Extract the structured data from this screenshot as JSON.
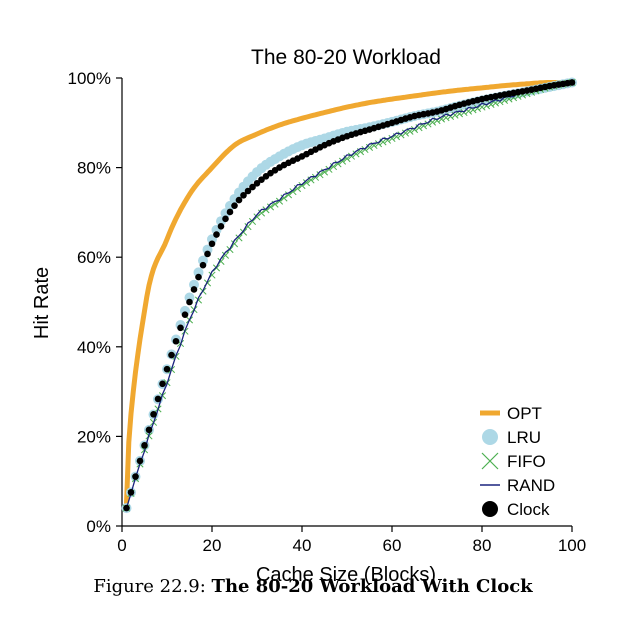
{
  "chart_data": {
    "type": "line",
    "title": "The 80-20 Workload",
    "xlabel": "Cache Size (Blocks)",
    "ylabel": "Hit Rate",
    "xlim": [
      0,
      100
    ],
    "ylim": [
      0,
      100
    ],
    "x_ticks": [
      0,
      20,
      40,
      60,
      80,
      100
    ],
    "x_tick_labels": [
      "0",
      "20",
      "40",
      "60",
      "80",
      "100"
    ],
    "y_ticks": [
      0,
      20,
      40,
      60,
      80,
      100
    ],
    "y_tick_labels": [
      "0%",
      "20%",
      "40%",
      "60%",
      "80%",
      "100%"
    ],
    "grid": false,
    "legend_position": "bottom-right",
    "x": [
      1,
      5,
      10,
      15,
      20,
      25,
      30,
      35,
      40,
      45,
      50,
      55,
      60,
      65,
      70,
      75,
      80,
      85,
      90,
      95,
      100
    ],
    "series": [
      {
        "name": "OPT",
        "style": "line",
        "color": "#f0a830",
        "values": [
          5,
          48,
          64,
          74,
          80,
          85,
          87.5,
          89.5,
          91,
          92.3,
          93.5,
          94.5,
          95.3,
          96,
          96.7,
          97.3,
          97.8,
          98.3,
          98.7,
          99,
          99
        ]
      },
      {
        "name": "LRU",
        "style": "marker",
        "marker": "circle",
        "color": "#add8e6",
        "values": [
          4,
          18,
          35,
          51,
          64,
          73,
          79,
          82.5,
          85,
          86.5,
          88,
          89,
          90.2,
          91.5,
          92.5,
          93.8,
          95,
          96,
          97,
          98,
          99
        ]
      },
      {
        "name": "FIFO",
        "style": "marker",
        "marker": "x",
        "color": "#4caf50",
        "values": [
          4,
          17,
          32,
          46,
          56,
          63,
          69,
          72.5,
          76,
          79,
          82,
          84.5,
          86.5,
          88.5,
          90.5,
          92,
          93.5,
          95,
          96.5,
          98,
          99
        ]
      },
      {
        "name": "RAND",
        "style": "line",
        "color": "#1a237e",
        "values": [
          4,
          17,
          32,
          46,
          56.5,
          63.5,
          69.5,
          73,
          76.5,
          79.5,
          82.5,
          85,
          87,
          89,
          91,
          92.5,
          94,
          95.5,
          97,
          98,
          99
        ]
      },
      {
        "name": "Clock",
        "style": "marker",
        "marker": "dot",
        "color": "#000000",
        "values": [
          4,
          18,
          35,
          50,
          63,
          71.5,
          76.5,
          80,
          82.5,
          85,
          87,
          88.5,
          90,
          91.5,
          92.5,
          94,
          95.3,
          96.3,
          97.2,
          98.2,
          99
        ]
      }
    ]
  },
  "caption": {
    "label": "Figure 22.9:",
    "title": "The 80-20 Workload With Clock"
  }
}
